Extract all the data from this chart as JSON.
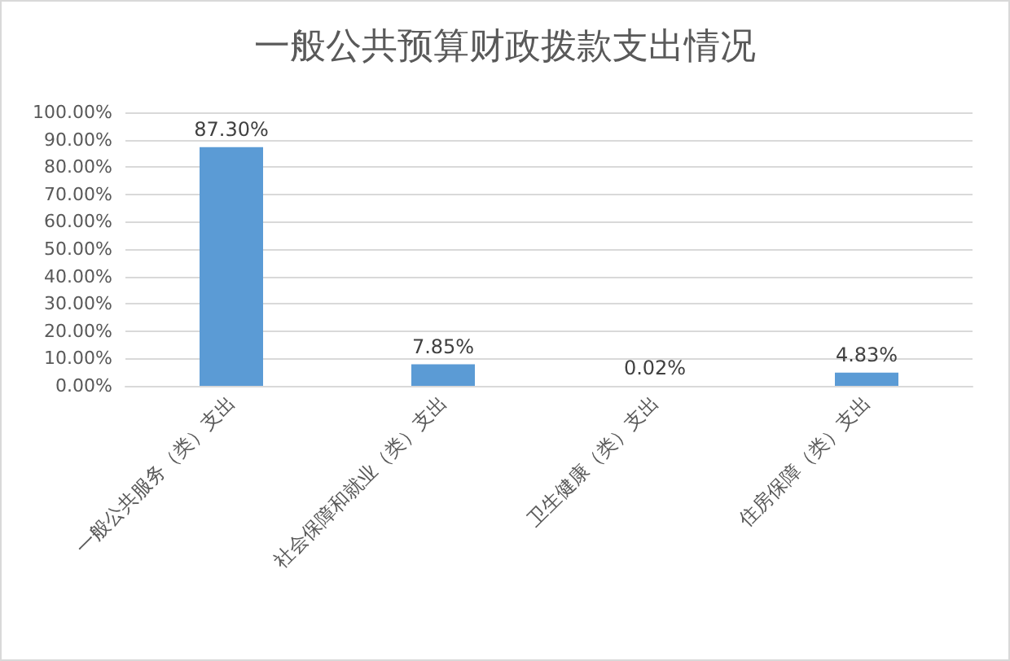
{
  "chart_data": {
    "type": "bar",
    "title": "一般公共预算财政拨款支出情况",
    "categories": [
      "一般公共服务（类）支出",
      "社会保障和就业（类）支出",
      "卫生健康（类）支出",
      "住房保障（类）支出"
    ],
    "values": [
      87.3,
      7.85,
      0.02,
      4.83
    ],
    "value_labels": [
      "87.30%",
      "7.85%",
      "0.02%",
      "4.83%"
    ],
    "color": "#5b9bd5",
    "ylim": [
      0,
      100
    ],
    "yticks": [
      {
        "value": 0,
        "label": "0.00%"
      },
      {
        "value": 10,
        "label": "10.00%"
      },
      {
        "value": 20,
        "label": "20.00%"
      },
      {
        "value": 30,
        "label": "30.00%"
      },
      {
        "value": 40,
        "label": "40.00%"
      },
      {
        "value": 50,
        "label": "50.00%"
      },
      {
        "value": 60,
        "label": "60.00%"
      },
      {
        "value": 70,
        "label": "70.00%"
      },
      {
        "value": 80,
        "label": "80.00%"
      },
      {
        "value": 90,
        "label": "90.00%"
      },
      {
        "value": 100,
        "label": "100.00%"
      }
    ],
    "grid": "y"
  }
}
